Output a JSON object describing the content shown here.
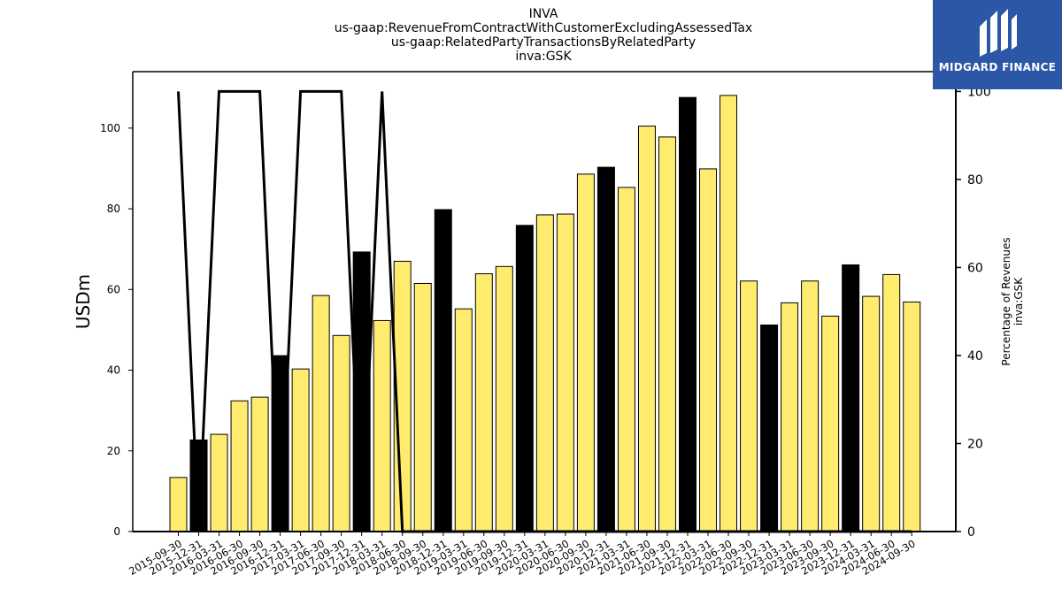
{
  "brand": {
    "name": "MIDGARD FINANCE",
    "color": "#2b57a6"
  },
  "chart_data": {
    "type": "bar",
    "title_lines": [
      "INVA",
      "us-gaap:RevenueFromContractWithCustomerExcludingAssessedTax",
      "us-gaap:RelatedPartyTransactionsByRelatedParty",
      "inva:GSK"
    ],
    "ylabel": "USDm",
    "ylabel_right_lines": [
      "Percentage of Revenues",
      "inva:GSK"
    ],
    "ylim": [
      0,
      114
    ],
    "ylim_right": [
      0,
      104.5
    ],
    "yticks": [
      0,
      20,
      40,
      60,
      80,
      100
    ],
    "yticks_right": [
      0,
      20,
      40,
      60,
      80,
      100
    ],
    "grid": false,
    "colors": {
      "quarter_bar": "#ffec6e",
      "year_end_bar": "#000000",
      "line": "#000000"
    },
    "categories": [
      "2015-09-30",
      "2015-12-31",
      "2016-03-31",
      "2016-06-30",
      "2016-09-30",
      "2016-12-31",
      "2017-03-31",
      "2017-06-30",
      "2017-09-30",
      "2017-12-31",
      "2018-03-31",
      "2018-06-30",
      "2018-09-30",
      "2018-12-31",
      "2019-03-31",
      "2019-06-30",
      "2019-09-30",
      "2019-12-31",
      "2020-03-31",
      "2020-06-30",
      "2020-09-30",
      "2020-12-31",
      "2021-03-31",
      "2021-06-30",
      "2021-09-30",
      "2021-12-31",
      "2022-03-31",
      "2022-06-30",
      "2022-09-30",
      "2022-12-31",
      "2023-03-31",
      "2023-06-30",
      "2023-09-30",
      "2023-12-31",
      "2024-03-31",
      "2024-06-30",
      "2024-09-30"
    ],
    "series": [
      {
        "type": "bar",
        "axis": "left",
        "values": [
          13.4,
          22.7,
          24.1,
          32.4,
          33.3,
          43.6,
          40.3,
          58.5,
          48.6,
          69.3,
          52.3,
          67.0,
          61.5,
          79.8,
          55.2,
          63.9,
          65.7,
          75.9,
          78.5,
          78.7,
          88.6,
          90.3,
          85.3,
          100.5,
          97.8,
          107.6,
          89.9,
          108.1,
          62.1,
          51.2,
          56.7,
          62.1,
          53.4,
          66.1,
          58.3,
          63.7,
          56.9
        ],
        "year_end": [
          false,
          true,
          false,
          false,
          false,
          true,
          false,
          false,
          false,
          true,
          false,
          false,
          false,
          true,
          false,
          false,
          false,
          true,
          false,
          false,
          false,
          true,
          false,
          false,
          false,
          true,
          false,
          false,
          false,
          true,
          false,
          false,
          false,
          true,
          false,
          false,
          false
        ]
      },
      {
        "type": "line",
        "axis": "right",
        "values": [
          100,
          0,
          100,
          100,
          100,
          0,
          100,
          100,
          100,
          0,
          100,
          0,
          0,
          0,
          0,
          0,
          0,
          0,
          0,
          0,
          0,
          0,
          0,
          0,
          0,
          0,
          0,
          0,
          0,
          0,
          0,
          0,
          0,
          0,
          0,
          0,
          0
        ]
      }
    ]
  }
}
